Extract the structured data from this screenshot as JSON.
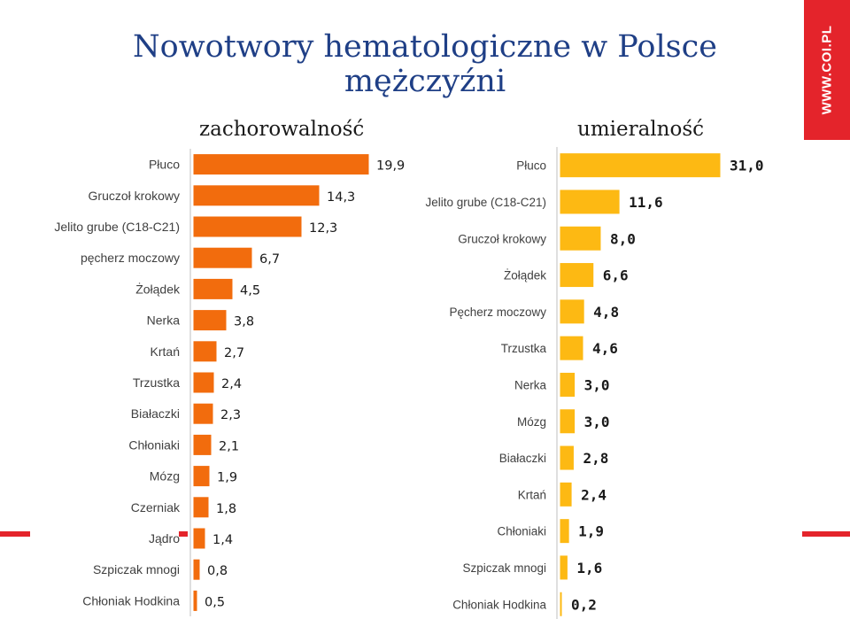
{
  "header": {
    "title_line1": "Nowotwory hematologiczne w Polsce",
    "title_line2": "mężczyźni",
    "watermark": "WWW.COI.PL"
  },
  "colors": {
    "title": "#1f3f86",
    "incidence_bar": "#f26c0d",
    "mortality_bar": "#fdb913",
    "accent": "#e4242b"
  },
  "chart_data": [
    {
      "type": "bar",
      "orientation": "horizontal",
      "title": "zachorowalność",
      "categories": [
        "Płuco",
        "Gruczoł krokowy",
        "Jelito grube (C18-C21)",
        "pęcherz moczowy",
        "Żołądek",
        "Nerka",
        "Krtań",
        "Trzustka",
        "Białaczki",
        "Chłoniaki",
        "Mózg",
        "Czerniak",
        "Jądro",
        "Szpiczak mnogi",
        "Chłoniak Hodkina"
      ],
      "values": [
        19.9,
        14.3,
        12.3,
        6.7,
        4.5,
        3.8,
        2.7,
        2.4,
        2.3,
        2.1,
        1.9,
        1.8,
        1.4,
        0.8,
        0.5
      ],
      "value_labels": [
        "19,9",
        "14,3",
        "12,3",
        "6,7",
        "4,5",
        "3,8",
        "2,7",
        "2,4",
        "2,3",
        "2,1",
        "1,9",
        "1,8",
        "1,4",
        "0,8",
        "0,5"
      ],
      "xlim": [
        0,
        20
      ]
    },
    {
      "type": "bar",
      "orientation": "horizontal",
      "title": "umieralność",
      "categories": [
        "Płuco",
        "Jelito grube (C18-C21)",
        "Gruczoł krokowy",
        "Żołądek",
        "Pęcherz moczowy",
        "Trzustka",
        "Nerka",
        "Mózg",
        "Białaczki",
        "Krtań",
        "Chłoniaki",
        "Szpiczak mnogi",
        "Chłoniak Hodkina"
      ],
      "values": [
        31.0,
        11.6,
        8.0,
        6.6,
        4.8,
        4.6,
        3.0,
        3.0,
        2.8,
        2.4,
        1.9,
        1.6,
        0.2
      ],
      "value_labels": [
        "31,0",
        "11,6",
        "8,0",
        "6,6",
        "4,8",
        "4,6",
        "3,0",
        "3,0",
        "2,8",
        "2,4",
        "1,9",
        "1,6",
        "0,2"
      ],
      "xlim": [
        0,
        31
      ]
    }
  ]
}
